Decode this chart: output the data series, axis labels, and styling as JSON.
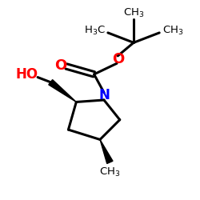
{
  "bg_color": "#ffffff",
  "bond_color": "#000000",
  "N_color": "#0000ff",
  "O_color": "#ff0000",
  "figsize": [
    2.5,
    2.5
  ],
  "dpi": 100,
  "xlim": [
    0,
    10
  ],
  "ylim": [
    0,
    10
  ]
}
